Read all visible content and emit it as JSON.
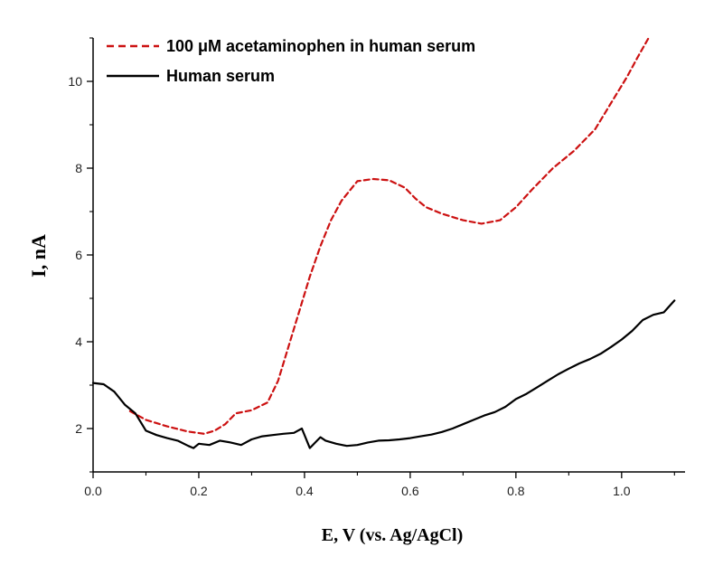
{
  "chart_data": {
    "type": "line",
    "title": "",
    "xlabel": "E, V (vs. Ag/AgCl)",
    "ylabel": "I, nA",
    "xlim": [
      0.0,
      1.12
    ],
    "ylim": [
      1.0,
      11.0
    ],
    "x_ticks": [
      0.0,
      0.2,
      0.4,
      0.6,
      0.8,
      1.0
    ],
    "x_tick_labels": [
      "0.0",
      "0.2",
      "0.4",
      "0.6",
      "0.8",
      "1.0"
    ],
    "y_ticks": [
      2,
      4,
      6,
      8,
      10
    ],
    "y_tick_labels": [
      "2",
      "4",
      "6",
      "8",
      "10"
    ],
    "grid": false,
    "legend_position": "top-left",
    "series": [
      {
        "name": "100 μM acetaminophen in human serum",
        "color": "#cc1111",
        "style": "dashed",
        "x": [
          0.07,
          0.1,
          0.14,
          0.18,
          0.21,
          0.23,
          0.25,
          0.27,
          0.3,
          0.33,
          0.35,
          0.37,
          0.39,
          0.41,
          0.43,
          0.45,
          0.47,
          0.5,
          0.53,
          0.56,
          0.59,
          0.61,
          0.63,
          0.66,
          0.7,
          0.735,
          0.77,
          0.8,
          0.83,
          0.87,
          0.91,
          0.95,
          0.98,
          1.01,
          1.03,
          1.05
        ],
        "y": [
          2.4,
          2.2,
          2.05,
          1.93,
          1.88,
          1.95,
          2.1,
          2.35,
          2.42,
          2.6,
          3.1,
          3.9,
          4.7,
          5.5,
          6.2,
          6.8,
          7.25,
          7.7,
          7.75,
          7.72,
          7.55,
          7.3,
          7.1,
          6.95,
          6.8,
          6.72,
          6.8,
          7.1,
          7.5,
          8.0,
          8.4,
          8.9,
          9.5,
          10.1,
          10.55,
          10.98
        ]
      },
      {
        "name": "Human serum",
        "color": "#000000",
        "style": "solid",
        "x": [
          0.0,
          0.02,
          0.04,
          0.06,
          0.08,
          0.1,
          0.12,
          0.14,
          0.16,
          0.18,
          0.19,
          0.2,
          0.22,
          0.24,
          0.26,
          0.28,
          0.3,
          0.32,
          0.34,
          0.36,
          0.38,
          0.395,
          0.41,
          0.43,
          0.44,
          0.46,
          0.48,
          0.5,
          0.52,
          0.54,
          0.56,
          0.58,
          0.6,
          0.62,
          0.64,
          0.66,
          0.68,
          0.7,
          0.72,
          0.74,
          0.76,
          0.78,
          0.8,
          0.82,
          0.84,
          0.86,
          0.88,
          0.9,
          0.92,
          0.94,
          0.96,
          0.98,
          1.0,
          1.02,
          1.04,
          1.06,
          1.08,
          1.1
        ],
        "y": [
          3.05,
          3.02,
          2.85,
          2.55,
          2.35,
          1.95,
          1.85,
          1.78,
          1.72,
          1.6,
          1.55,
          1.65,
          1.62,
          1.72,
          1.68,
          1.62,
          1.75,
          1.82,
          1.85,
          1.88,
          1.9,
          2.0,
          1.55,
          1.8,
          1.72,
          1.65,
          1.6,
          1.62,
          1.68,
          1.72,
          1.73,
          1.75,
          1.78,
          1.82,
          1.86,
          1.92,
          2.0,
          2.1,
          2.2,
          2.3,
          2.38,
          2.5,
          2.68,
          2.8,
          2.95,
          3.1,
          3.25,
          3.38,
          3.5,
          3.6,
          3.72,
          3.88,
          4.05,
          4.25,
          4.5,
          4.62,
          4.68,
          4.95
        ]
      }
    ]
  }
}
